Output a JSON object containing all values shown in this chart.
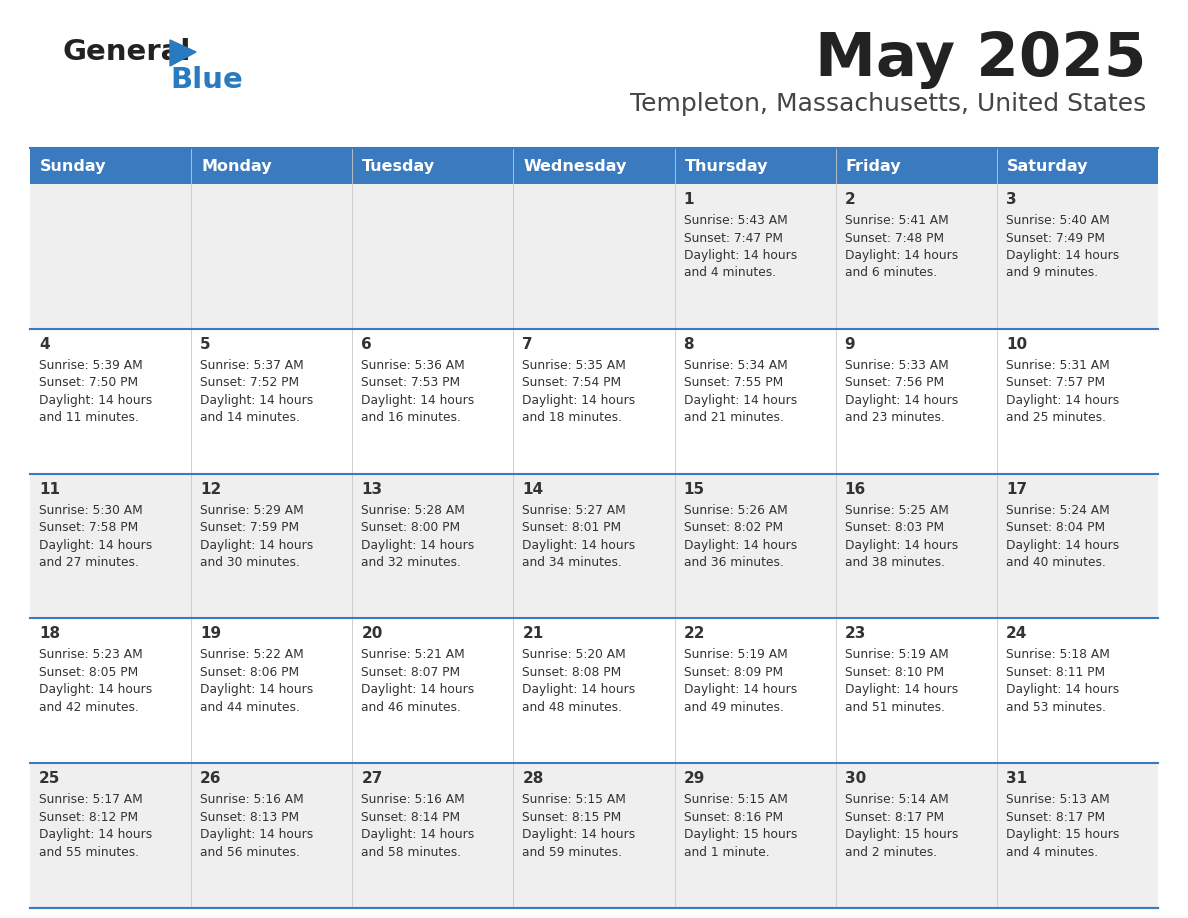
{
  "title": "May 2025",
  "subtitle": "Templeton, Massachusetts, United States",
  "header_bg": "#3a7abf",
  "header_text_color": "#ffffff",
  "day_names": [
    "Sunday",
    "Monday",
    "Tuesday",
    "Wednesday",
    "Thursday",
    "Friday",
    "Saturday"
  ],
  "row_bg_even": "#efefef",
  "row_bg_odd": "#ffffff",
  "cell_text_color": "#333333",
  "date_text_color": "#333333",
  "divider_color": "#3a7abf",
  "logo_general_color": "#222222",
  "logo_blue_color": "#2a7abf",
  "days": [
    {
      "day": 1,
      "col": 4,
      "row": 0,
      "sunrise": "5:43 AM",
      "sunset": "7:47 PM",
      "daylight": "14 hours and 4 minutes."
    },
    {
      "day": 2,
      "col": 5,
      "row": 0,
      "sunrise": "5:41 AM",
      "sunset": "7:48 PM",
      "daylight": "14 hours and 6 minutes."
    },
    {
      "day": 3,
      "col": 6,
      "row": 0,
      "sunrise": "5:40 AM",
      "sunset": "7:49 PM",
      "daylight": "14 hours and 9 minutes."
    },
    {
      "day": 4,
      "col": 0,
      "row": 1,
      "sunrise": "5:39 AM",
      "sunset": "7:50 PM",
      "daylight": "14 hours and 11 minutes."
    },
    {
      "day": 5,
      "col": 1,
      "row": 1,
      "sunrise": "5:37 AM",
      "sunset": "7:52 PM",
      "daylight": "14 hours and 14 minutes."
    },
    {
      "day": 6,
      "col": 2,
      "row": 1,
      "sunrise": "5:36 AM",
      "sunset": "7:53 PM",
      "daylight": "14 hours and 16 minutes."
    },
    {
      "day": 7,
      "col": 3,
      "row": 1,
      "sunrise": "5:35 AM",
      "sunset": "7:54 PM",
      "daylight": "14 hours and 18 minutes."
    },
    {
      "day": 8,
      "col": 4,
      "row": 1,
      "sunrise": "5:34 AM",
      "sunset": "7:55 PM",
      "daylight": "14 hours and 21 minutes."
    },
    {
      "day": 9,
      "col": 5,
      "row": 1,
      "sunrise": "5:33 AM",
      "sunset": "7:56 PM",
      "daylight": "14 hours and 23 minutes."
    },
    {
      "day": 10,
      "col": 6,
      "row": 1,
      "sunrise": "5:31 AM",
      "sunset": "7:57 PM",
      "daylight": "14 hours and 25 minutes."
    },
    {
      "day": 11,
      "col": 0,
      "row": 2,
      "sunrise": "5:30 AM",
      "sunset": "7:58 PM",
      "daylight": "14 hours and 27 minutes."
    },
    {
      "day": 12,
      "col": 1,
      "row": 2,
      "sunrise": "5:29 AM",
      "sunset": "7:59 PM",
      "daylight": "14 hours and 30 minutes."
    },
    {
      "day": 13,
      "col": 2,
      "row": 2,
      "sunrise": "5:28 AM",
      "sunset": "8:00 PM",
      "daylight": "14 hours and 32 minutes."
    },
    {
      "day": 14,
      "col": 3,
      "row": 2,
      "sunrise": "5:27 AM",
      "sunset": "8:01 PM",
      "daylight": "14 hours and 34 minutes."
    },
    {
      "day": 15,
      "col": 4,
      "row": 2,
      "sunrise": "5:26 AM",
      "sunset": "8:02 PM",
      "daylight": "14 hours and 36 minutes."
    },
    {
      "day": 16,
      "col": 5,
      "row": 2,
      "sunrise": "5:25 AM",
      "sunset": "8:03 PM",
      "daylight": "14 hours and 38 minutes."
    },
    {
      "day": 17,
      "col": 6,
      "row": 2,
      "sunrise": "5:24 AM",
      "sunset": "8:04 PM",
      "daylight": "14 hours and 40 minutes."
    },
    {
      "day": 18,
      "col": 0,
      "row": 3,
      "sunrise": "5:23 AM",
      "sunset": "8:05 PM",
      "daylight": "14 hours and 42 minutes."
    },
    {
      "day": 19,
      "col": 1,
      "row": 3,
      "sunrise": "5:22 AM",
      "sunset": "8:06 PM",
      "daylight": "14 hours and 44 minutes."
    },
    {
      "day": 20,
      "col": 2,
      "row": 3,
      "sunrise": "5:21 AM",
      "sunset": "8:07 PM",
      "daylight": "14 hours and 46 minutes."
    },
    {
      "day": 21,
      "col": 3,
      "row": 3,
      "sunrise": "5:20 AM",
      "sunset": "8:08 PM",
      "daylight": "14 hours and 48 minutes."
    },
    {
      "day": 22,
      "col": 4,
      "row": 3,
      "sunrise": "5:19 AM",
      "sunset": "8:09 PM",
      "daylight": "14 hours and 49 minutes."
    },
    {
      "day": 23,
      "col": 5,
      "row": 3,
      "sunrise": "5:19 AM",
      "sunset": "8:10 PM",
      "daylight": "14 hours and 51 minutes."
    },
    {
      "day": 24,
      "col": 6,
      "row": 3,
      "sunrise": "5:18 AM",
      "sunset": "8:11 PM",
      "daylight": "14 hours and 53 minutes."
    },
    {
      "day": 25,
      "col": 0,
      "row": 4,
      "sunrise": "5:17 AM",
      "sunset": "8:12 PM",
      "daylight": "14 hours and 55 minutes."
    },
    {
      "day": 26,
      "col": 1,
      "row": 4,
      "sunrise": "5:16 AM",
      "sunset": "8:13 PM",
      "daylight": "14 hours and 56 minutes."
    },
    {
      "day": 27,
      "col": 2,
      "row": 4,
      "sunrise": "5:16 AM",
      "sunset": "8:14 PM",
      "daylight": "14 hours and 58 minutes."
    },
    {
      "day": 28,
      "col": 3,
      "row": 4,
      "sunrise": "5:15 AM",
      "sunset": "8:15 PM",
      "daylight": "14 hours and 59 minutes."
    },
    {
      "day": 29,
      "col": 4,
      "row": 4,
      "sunrise": "5:15 AM",
      "sunset": "8:16 PM",
      "daylight": "15 hours and 1 minute."
    },
    {
      "day": 30,
      "col": 5,
      "row": 4,
      "sunrise": "5:14 AM",
      "sunset": "8:17 PM",
      "daylight": "15 hours and 2 minutes."
    },
    {
      "day": 31,
      "col": 6,
      "row": 4,
      "sunrise": "5:13 AM",
      "sunset": "8:17 PM",
      "daylight": "15 hours and 4 minutes."
    }
  ]
}
